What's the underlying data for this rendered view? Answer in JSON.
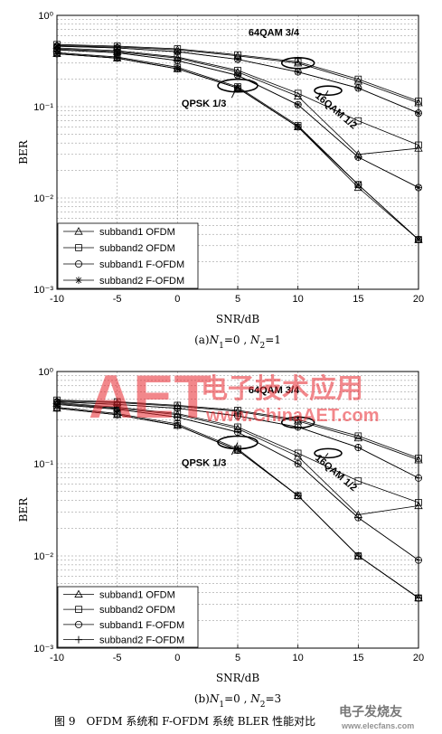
{
  "figure_caption": "图 9　OFDM 系统和 F-OFDM 系统 BLER 性能对比",
  "watermark": {
    "logo_text": "AET",
    "cn_text": "电子技术应用",
    "url": "www.ChinaAET.com",
    "corner_text": "电子发烧友",
    "corner_url": "www.elecfans.com",
    "color": "#e8262d"
  },
  "chart_data": [
    {
      "type": "line",
      "subcaption": "(a) N1=0 , N2=1",
      "subcaption_parts": {
        "pre": "(a)",
        "n1": "N",
        "n1sub": "1",
        "eq1": "=0 ,",
        "n2": "N",
        "n2sub": "2",
        "eq2": "=1"
      },
      "xlabel": "SNR/dB",
      "ylabel": "BER",
      "x_ticks": [
        "-10",
        "-5",
        "0",
        "5",
        "10",
        "15",
        "20"
      ],
      "y_scale": "log",
      "y_ticks": [
        "10⁰",
        "10⁻¹",
        "10⁻²",
        "10⁻³"
      ],
      "xlim": [
        -10,
        20
      ],
      "ylim": [
        0.001,
        1
      ],
      "grid": true,
      "legend_position": "bottom-left",
      "legend": [
        {
          "label": "subband1  OFDM",
          "marker": "triangle"
        },
        {
          "label": "subband2  OFDM",
          "marker": "square"
        },
        {
          "label": "subband1  F-OFDM",
          "marker": "circle"
        },
        {
          "label": "subband2  F-OFDM",
          "marker": "star"
        }
      ],
      "annotations": [
        {
          "text": "64QAM 3/4",
          "x": 10,
          "y": 0.3
        },
        {
          "text": "16QAM 1/2",
          "x": 12.5,
          "y": 0.15
        },
        {
          "text": "QPSK 1/3",
          "x": 5,
          "y": 0.17
        }
      ],
      "x": [
        -10,
        -5,
        0,
        5,
        10,
        15,
        20
      ],
      "series": [
        {
          "modulation": "QPSK 1/3",
          "marker": "triangle",
          "values": [
            0.38,
            0.34,
            0.26,
            0.16,
            0.06,
            0.013,
            0.0035
          ]
        },
        {
          "modulation": "QPSK 1/3",
          "marker": "square",
          "values": [
            0.39,
            0.35,
            0.27,
            0.165,
            0.062,
            0.014,
            0.0035
          ]
        },
        {
          "modulation": "QPSK 1/3",
          "marker": "circle",
          "values": [
            0.38,
            0.34,
            0.26,
            0.16,
            0.06,
            0.014,
            0.0035
          ]
        },
        {
          "modulation": "QPSK 1/3",
          "marker": "star",
          "values": [
            0.38,
            0.34,
            0.26,
            0.16,
            0.06,
            0.014,
            0.0035
          ]
        },
        {
          "modulation": "16QAM 1/2",
          "marker": "triangle",
          "values": [
            0.43,
            0.4,
            0.34,
            0.24,
            0.13,
            0.03,
            0.035
          ]
        },
        {
          "modulation": "16QAM 1/2",
          "marker": "square",
          "values": [
            0.44,
            0.41,
            0.35,
            0.25,
            0.14,
            0.07,
            0.038
          ]
        },
        {
          "modulation": "16QAM 1/2",
          "marker": "circle",
          "values": [
            0.42,
            0.39,
            0.32,
            0.22,
            0.105,
            0.028,
            0.013
          ]
        },
        {
          "modulation": "16QAM 1/2",
          "marker": "star",
          "values": [
            0.42,
            0.39,
            0.32,
            0.22,
            0.105,
            0.028,
            0.013
          ]
        },
        {
          "modulation": "64QAM 3/4",
          "marker": "triangle",
          "values": [
            0.47,
            0.45,
            0.42,
            0.36,
            0.3,
            0.19,
            0.11
          ]
        },
        {
          "modulation": "64QAM 3/4",
          "marker": "square",
          "values": [
            0.48,
            0.46,
            0.43,
            0.37,
            0.31,
            0.2,
            0.115
          ]
        },
        {
          "modulation": "64QAM 3/4",
          "marker": "circle",
          "values": [
            0.46,
            0.44,
            0.4,
            0.33,
            0.24,
            0.16,
            0.085
          ]
        },
        {
          "modulation": "64QAM 3/4",
          "marker": "star",
          "values": [
            0.46,
            0.44,
            0.4,
            0.33,
            0.24,
            0.16,
            0.085
          ]
        }
      ]
    },
    {
      "type": "line",
      "subcaption": "(b) N1=0 , N2=3",
      "subcaption_parts": {
        "pre": "(b)",
        "n1": "N",
        "n1sub": "1",
        "eq1": "=0 ,",
        "n2": "N",
        "n2sub": "2",
        "eq2": "=3"
      },
      "xlabel": "SNR/dB",
      "ylabel": "BER",
      "x_ticks": [
        "-10",
        "-5",
        "0",
        "5",
        "10",
        "15",
        "20"
      ],
      "y_scale": "log",
      "y_ticks": [
        "10⁰",
        "10⁻¹",
        "10⁻²",
        "10⁻³"
      ],
      "xlim": [
        -10,
        20
      ],
      "ylim": [
        0.001,
        1
      ],
      "grid": true,
      "legend_position": "bottom-left",
      "legend": [
        {
          "label": "subband1  OFDM",
          "marker": "triangle"
        },
        {
          "label": "subband2  OFDM",
          "marker": "square"
        },
        {
          "label": "subband1  F-OFDM",
          "marker": "circle"
        },
        {
          "label": "subband2  F-OFDM",
          "marker": "plus"
        }
      ],
      "annotations": [
        {
          "text": "64QAM 3/4",
          "x": 10,
          "y": 0.28
        },
        {
          "text": "16QAM 1/2",
          "x": 12.5,
          "y": 0.13
        },
        {
          "text": "QPSK 1/3",
          "x": 5,
          "y": 0.17
        }
      ],
      "x": [
        -10,
        -5,
        0,
        5,
        10,
        15,
        20
      ],
      "series": [
        {
          "modulation": "QPSK 1/3",
          "marker": "triangle",
          "values": [
            0.4,
            0.34,
            0.26,
            0.14,
            0.045,
            0.01,
            0.0035
          ]
        },
        {
          "modulation": "QPSK 1/3",
          "marker": "square",
          "values": [
            0.41,
            0.35,
            0.27,
            0.145,
            0.045,
            0.01,
            0.0035
          ]
        },
        {
          "modulation": "QPSK 1/3",
          "marker": "circle",
          "values": [
            0.4,
            0.34,
            0.26,
            0.14,
            0.045,
            0.01,
            0.0035
          ]
        },
        {
          "modulation": "QPSK 1/3",
          "marker": "plus",
          "values": [
            0.4,
            0.34,
            0.26,
            0.14,
            0.045,
            0.01,
            0.0035
          ]
        },
        {
          "modulation": "16QAM 1/2",
          "marker": "triangle",
          "values": [
            0.45,
            0.4,
            0.34,
            0.24,
            0.12,
            0.028,
            0.035
          ]
        },
        {
          "modulation": "16QAM 1/2",
          "marker": "square",
          "values": [
            0.46,
            0.41,
            0.35,
            0.25,
            0.13,
            0.065,
            0.038
          ]
        },
        {
          "modulation": "16QAM 1/2",
          "marker": "circle",
          "values": [
            0.44,
            0.39,
            0.32,
            0.22,
            0.1,
            0.026,
            0.009
          ]
        },
        {
          "modulation": "16QAM 1/2",
          "marker": "plus",
          "values": [
            0.44,
            0.39,
            0.32,
            0.22,
            0.1,
            0.026,
            0.009
          ]
        },
        {
          "modulation": "64QAM 3/4",
          "marker": "triangle",
          "values": [
            0.48,
            0.46,
            0.42,
            0.37,
            0.29,
            0.19,
            0.11
          ]
        },
        {
          "modulation": "64QAM 3/4",
          "marker": "square",
          "values": [
            0.49,
            0.47,
            0.43,
            0.38,
            0.3,
            0.2,
            0.115
          ]
        },
        {
          "modulation": "64QAM 3/4",
          "marker": "circle",
          "values": [
            0.47,
            0.44,
            0.4,
            0.33,
            0.25,
            0.15,
            0.07
          ]
        },
        {
          "modulation": "64QAM 3/4",
          "marker": "plus",
          "values": [
            0.47,
            0.44,
            0.4,
            0.33,
            0.25,
            0.15,
            0.07
          ]
        }
      ]
    }
  ]
}
